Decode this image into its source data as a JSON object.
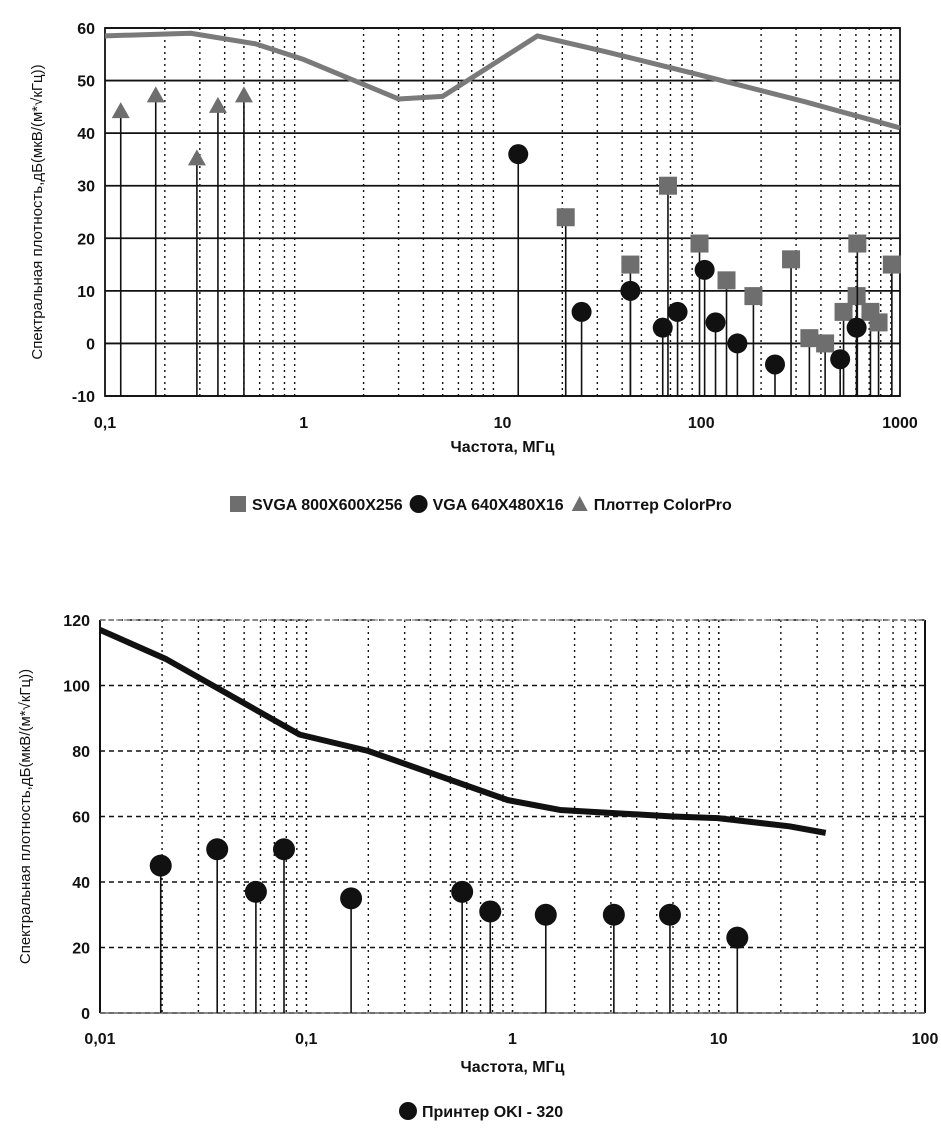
{
  "colors": {
    "ink": "#111111",
    "gray_marker": "#6e6e6e",
    "gray_line": "#7a7a7a",
    "background": "#ffffff"
  },
  "chart_data": [
    {
      "type": "scatter",
      "subtype": "stem",
      "title": "",
      "xlabel": "Частота, МГц",
      "ylabel": "Спектральная плотность,дБ(мкВ/(м*√кГц))",
      "xscale": "log",
      "xlim": [
        0.1,
        1000
      ],
      "ylim": [
        -10,
        60
      ],
      "x_ticks": [
        0.1,
        1,
        10,
        100,
        1000
      ],
      "x_tick_labels": [
        "0,1",
        "1",
        "10",
        "100",
        "1000"
      ],
      "y_ticks": [
        -10,
        0,
        10,
        20,
        30,
        40,
        50,
        60
      ],
      "y_tick_labels": [
        "-10",
        "0",
        "10",
        "20",
        "30",
        "40",
        "50",
        "60"
      ],
      "grid": {
        "horizontal": "solid",
        "vertical": "dotted-log-minor"
      },
      "legend_position": "bottom",
      "legend": [
        "SVGA 800X600X256",
        "VGA 640X480X16",
        "Плоттер ColorPro"
      ],
      "series": [
        {
          "name": "SVGA 800X600X256",
          "marker": "square",
          "color": "#6e6e6e",
          "points": [
            [
              20.8,
              24
            ],
            [
              44,
              15
            ],
            [
              68,
              30
            ],
            [
              98,
              19
            ],
            [
              134,
              12
            ],
            [
              183,
              9
            ],
            [
              283,
              16
            ],
            [
              350,
              1
            ],
            [
              420,
              0
            ],
            [
              520,
              6
            ],
            [
              605,
              9
            ],
            [
              610,
              19
            ],
            [
              710,
              6
            ],
            [
              780,
              4
            ],
            [
              910,
              15
            ]
          ]
        },
        {
          "name": "VGA 640X480X16",
          "marker": "circle",
          "color": "#111111",
          "points": [
            [
              12,
              36
            ],
            [
              25,
              6
            ],
            [
              44,
              10
            ],
            [
              64,
              3
            ],
            [
              76,
              6
            ],
            [
              104,
              14
            ],
            [
              118,
              4
            ],
            [
              152,
              0
            ],
            [
              235,
              -4
            ],
            [
              500,
              -3
            ],
            [
              605,
              3
            ]
          ]
        },
        {
          "name": "Плоттер ColorPro",
          "marker": "triangle",
          "color": "#6e6e6e",
          "points": [
            [
              0.12,
              44
            ],
            [
              0.18,
              47
            ],
            [
              0.29,
              35
            ],
            [
              0.37,
              45
            ],
            [
              0.5,
              47
            ]
          ]
        },
        {
          "name": "limit-line",
          "line": true,
          "color": "#7a7a7a",
          "points": [
            [
              0.1,
              58.5
            ],
            [
              0.27,
              59
            ],
            [
              0.57,
              57
            ],
            [
              1,
              54
            ],
            [
              3,
              46.5
            ],
            [
              5,
              47
            ],
            [
              15,
              58.5
            ],
            [
              33,
              55.5
            ],
            [
              100,
              51
            ],
            [
              330,
              46
            ],
            [
              1000,
              41
            ]
          ]
        }
      ]
    },
    {
      "type": "scatter",
      "subtype": "stem",
      "title": "",
      "xlabel": "Частота, МГц",
      "ylabel": "Спектральная плотность,дБ(мкВ/(м*√кГц))",
      "xscale": "log",
      "xlim": [
        0.01,
        100
      ],
      "ylim": [
        0,
        120
      ],
      "x_ticks": [
        0.01,
        0.1,
        1,
        10,
        100
      ],
      "x_tick_labels": [
        "0,01",
        "0,1",
        "1",
        "10",
        "100"
      ],
      "y_ticks": [
        0,
        20,
        40,
        60,
        80,
        100,
        120
      ],
      "y_tick_labels": [
        "0",
        "20",
        "40",
        "60",
        "80",
        "100",
        "120"
      ],
      "grid": {
        "horizontal": "dashed",
        "vertical": "dotted-log-minor"
      },
      "legend_position": "bottom",
      "legend": [
        "Принтер OKI - 320"
      ],
      "series": [
        {
          "name": "Принтер OKI - 320",
          "marker": "circle",
          "color": "#111111",
          "points": [
            [
              0.0197,
              45
            ],
            [
              0.037,
              50
            ],
            [
              0.057,
              37
            ],
            [
              0.078,
              50
            ],
            [
              0.165,
              35
            ],
            [
              0.57,
              37
            ],
            [
              0.78,
              31
            ],
            [
              1.45,
              30
            ],
            [
              3.1,
              30
            ],
            [
              5.8,
              30
            ],
            [
              12.3,
              23
            ]
          ]
        },
        {
          "name": "limit-line",
          "line": true,
          "color": "#111111",
          "points": [
            [
              0.01,
              117
            ],
            [
              0.021,
              108
            ],
            [
              0.093,
              85
            ],
            [
              0.2,
              80
            ],
            [
              0.95,
              65
            ],
            [
              1.7,
              62
            ],
            [
              6,
              60
            ],
            [
              9.9,
              59.5
            ],
            [
              22,
              57
            ],
            [
              33,
              55
            ]
          ]
        }
      ]
    }
  ]
}
